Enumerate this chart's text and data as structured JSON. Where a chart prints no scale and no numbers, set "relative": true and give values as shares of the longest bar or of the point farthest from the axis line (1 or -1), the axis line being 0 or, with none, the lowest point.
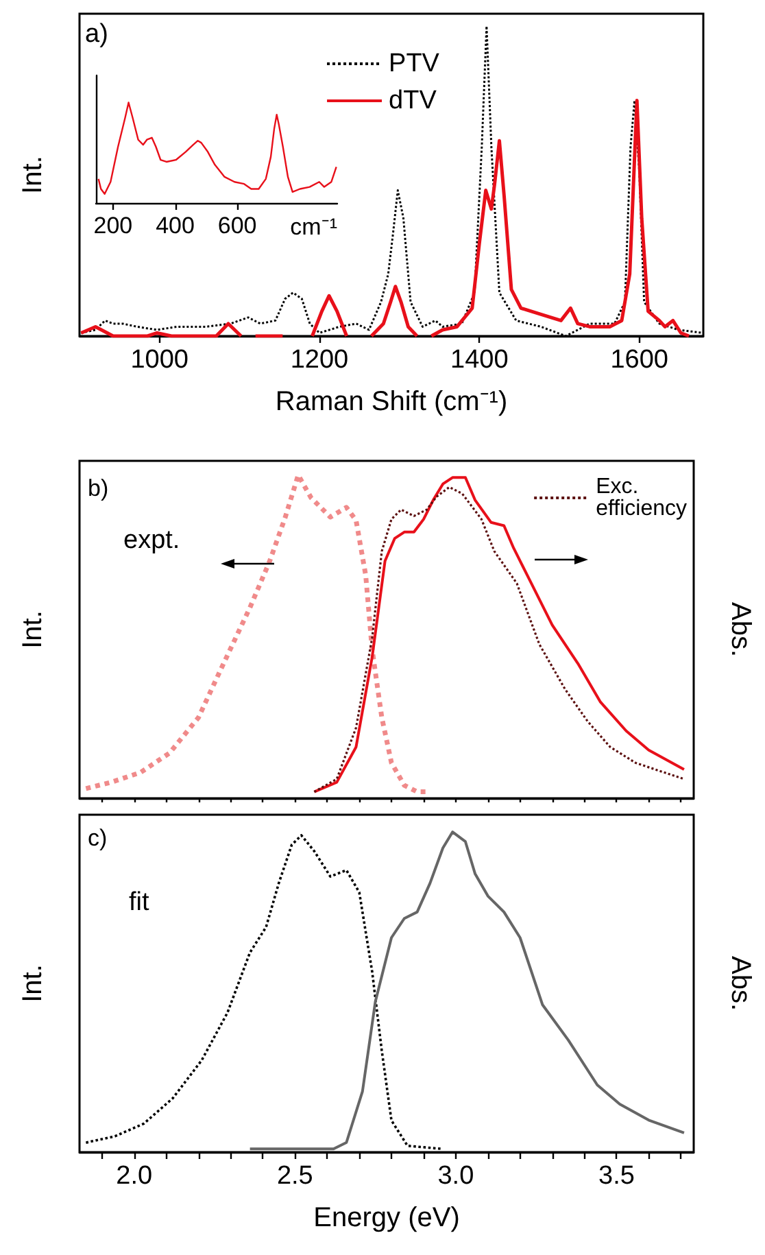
{
  "chart_data": [
    {
      "type": "line",
      "xlabel": "Raman Shift (cm⁻¹)",
      "ylabel": "Int.",
      "relative": true,
      "xlim": [
        900,
        1680
      ],
      "xticks": [
        1000,
        1200,
        1400,
        1600
      ],
      "tick_labels": "x",
      "legend": "top",
      "marker": "none",
      "annotations": [
        "a)"
      ],
      "series": [
        {
          "name": "PTV",
          "color": "#000000",
          "line_style": "dotted",
          "x": [
            902,
            920,
            932,
            942,
            954,
            972,
            997,
            1022,
            1058,
            1089,
            1111,
            1126,
            1145,
            1157,
            1167,
            1178,
            1188,
            1200,
            1225,
            1246,
            1262,
            1277,
            1286,
            1292,
            1298,
            1305,
            1314,
            1329,
            1345,
            1354,
            1378,
            1394,
            1403,
            1409,
            1415,
            1425,
            1446,
            1477,
            1508,
            1538,
            1569,
            1582,
            1589,
            1594,
            1600,
            1606,
            1625,
            1649,
            1680
          ],
          "values": [
            0.01,
            0.02,
            0.05,
            0.04,
            0.04,
            0.03,
            0.02,
            0.03,
            0.03,
            0.04,
            0.06,
            0.04,
            0.05,
            0.12,
            0.14,
            0.12,
            0.04,
            0.01,
            0.03,
            0.04,
            0.02,
            0.11,
            0.2,
            0.33,
            0.47,
            0.38,
            0.11,
            0.03,
            0.05,
            0.03,
            0.04,
            0.14,
            0.61,
            1,
            0.61,
            0.14,
            0.05,
            0.03,
            0,
            0.04,
            0.04,
            0.11,
            0.61,
            0.76,
            0.53,
            0.11,
            0.04,
            0.02,
            0.01
          ]
        },
        {
          "name": "dTV",
          "color": "#e8101a",
          "line_style": "solid",
          "x": [
            902,
            920,
            942,
            985,
            997,
            1015,
            1071,
            1086,
            1102,
            1110,
            1120,
            1154,
            1170,
            1191,
            1203,
            1212,
            1222,
            1234,
            1248,
            1265,
            1280,
            1289,
            1295,
            1302,
            1311,
            1322,
            1330,
            1340,
            1354,
            1372,
            1391,
            1400,
            1408,
            1415,
            1419,
            1425,
            1431,
            1440,
            1452,
            1477,
            1502,
            1514,
            1523,
            1538,
            1563,
            1578,
            1588,
            1597,
            1603,
            1611,
            1625,
            1632,
            1642,
            1652,
            1662
          ],
          "values": [
            0.01,
            0.03,
            0,
            0,
            0.01,
            0,
            0,
            0.04,
            0,
            null,
            0,
            0,
            null,
            0,
            0.08,
            0.13,
            0.08,
            0,
            null,
            0,
            0.04,
            0.11,
            0.16,
            0.11,
            0.03,
            0,
            null,
            0,
            0.02,
            0.03,
            0.09,
            0.3,
            0.47,
            0.41,
            0.49,
            0.63,
            0.45,
            0.15,
            0.09,
            0.07,
            0.05,
            0.09,
            0.04,
            0.03,
            0.03,
            0.05,
            0.2,
            0.76,
            0.38,
            0.08,
            0.05,
            0.03,
            0.05,
            0.01,
            0
          ]
        }
      ]
    },
    {
      "type": "line",
      "xlabel": "cm⁻¹",
      "relative": true,
      "xlim": [
        145,
        922
      ],
      "xticks": [
        200,
        400,
        600
      ],
      "tick_labels": "x",
      "marker": "none",
      "series": [
        {
          "color": "#e8101a",
          "line_style": "solid",
          "x": [
            153,
            161,
            173,
            192,
            216,
            239,
            250,
            263,
            281,
            297,
            309,
            325,
            338,
            353,
            372,
            403,
            434,
            458,
            473,
            484,
            505,
            528,
            559,
            591,
            622,
            645,
            669,
            692,
            708,
            719,
            727,
            734,
            747,
            763,
            778,
            802,
            833,
            864,
            880,
            903,
            919
          ],
          "values": [
            0.24,
            0.14,
            0.09,
            0.21,
            0.56,
            0.85,
            1,
            0.85,
            0.63,
            0.58,
            0.63,
            0.65,
            0.56,
            0.43,
            0.41,
            0.43,
            0.51,
            0.58,
            0.62,
            0.6,
            0.51,
            0.38,
            0.26,
            0.21,
            0.19,
            0.14,
            0.14,
            0.24,
            0.46,
            0.74,
            0.88,
            0.78,
            0.56,
            0.26,
            0.11,
            0.14,
            0.16,
            0.21,
            0.16,
            0.21,
            0.36
          ]
        }
      ]
    },
    {
      "type": "line",
      "ylabel": "Int.",
      "y2label": "Abs.",
      "relative": true,
      "xlim": [
        1.83,
        3.74
      ],
      "xticks": [
        {
          "value": 1.9,
          "label": null
        },
        {
          "value": 2,
          "label": null
        },
        {
          "value": 2.1,
          "label": null
        },
        {
          "value": 2.2,
          "label": null
        },
        {
          "value": 2.3,
          "label": null
        },
        {
          "value": 2.4,
          "label": null
        },
        {
          "value": 2.5,
          "label": null
        },
        {
          "value": 2.6,
          "label": null
        },
        {
          "value": 2.7,
          "label": null
        },
        {
          "value": 2.8,
          "label": null
        },
        {
          "value": 2.9,
          "label": null
        },
        {
          "value": 3,
          "label": null
        },
        {
          "value": 3.1,
          "label": null
        },
        {
          "value": 3.2,
          "label": null
        },
        {
          "value": 3.3,
          "label": null
        },
        {
          "value": 3.4,
          "label": null
        },
        {
          "value": 3.5,
          "label": null
        },
        {
          "value": 3.6,
          "label": null
        },
        {
          "value": 3.7,
          "label": null
        }
      ],
      "tick_labels": false,
      "legend": "top right",
      "marker": "none",
      "annotations": [
        "b)",
        "expt."
      ],
      "series": [
        {
          "color": "#f08a8a",
          "line_style": "dotted",
          "x": [
            1.85,
            1.93,
            2.02,
            2.11,
            2.2,
            2.27,
            2.36,
            2.42,
            2.47,
            2.51,
            2.55,
            2.61,
            2.66,
            2.69,
            2.72,
            2.74,
            2.77,
            2.8,
            2.84,
            2.88,
            2.92
          ],
          "values": [
            0.03,
            0.05,
            0.08,
            0.14,
            0.25,
            0.4,
            0.59,
            0.73,
            0.87,
            1,
            0.93,
            0.87,
            0.9,
            0.86,
            0.69,
            0.46,
            0.25,
            0.11,
            0.04,
            0.02,
            0.02
          ]
        },
        {
          "color": "#e8101a",
          "line_style": "solid",
          "axis": "y2",
          "x": [
            2.56,
            2.63,
            2.69,
            2.74,
            2.78,
            2.81,
            2.84,
            2.87,
            2.9,
            2.93,
            2.96,
            2.99,
            3.03,
            3.06,
            3.11,
            3.15,
            3.18,
            3.23,
            3.3,
            3.38,
            3.45,
            3.53,
            3.6,
            3.71
          ],
          "values": [
            0.02,
            0.05,
            0.16,
            0.44,
            0.74,
            0.81,
            0.83,
            0.83,
            0.87,
            0.93,
            0.98,
            1,
            1,
            0.93,
            0.86,
            0.85,
            0.78,
            0.68,
            0.54,
            0.42,
            0.3,
            0.21,
            0.15,
            0.09
          ]
        },
        {
          "name": "Exc. efficiency",
          "color": "#5c1010",
          "line_style": "dotted",
          "axis": "y2",
          "x": [
            2.56,
            2.63,
            2.69,
            2.74,
            2.77,
            2.8,
            2.83,
            2.87,
            2.91,
            2.94,
            2.98,
            3.02,
            3.08,
            3.12,
            3.19,
            3.26,
            3.34,
            3.41,
            3.48,
            3.56,
            3.65,
            3.71
          ],
          "values": [
            0.02,
            0.06,
            0.22,
            0.5,
            0.77,
            0.87,
            0.9,
            0.88,
            0.9,
            0.94,
            0.97,
            0.95,
            0.87,
            0.77,
            0.67,
            0.48,
            0.34,
            0.24,
            0.16,
            0.11,
            0.08,
            0.06
          ]
        }
      ]
    },
    {
      "type": "line",
      "xlabel": "Energy (eV)",
      "ylabel": "Int.",
      "y2label": "Abs.",
      "relative": true,
      "xlim": [
        1.83,
        3.74
      ],
      "xticks": [
        {
          "value": 1.9,
          "label": null
        },
        {
          "value": 2,
          "label": "2.0"
        },
        {
          "value": 2.1,
          "label": null
        },
        {
          "value": 2.2,
          "label": null
        },
        {
          "value": 2.3,
          "label": null
        },
        {
          "value": 2.4,
          "label": null
        },
        {
          "value": 2.5,
          "label": "2.5"
        },
        {
          "value": 2.6,
          "label": null
        },
        {
          "value": 2.7,
          "label": null
        },
        {
          "value": 2.8,
          "label": null
        },
        {
          "value": 2.9,
          "label": null
        },
        {
          "value": 3,
          "label": "3.0"
        },
        {
          "value": 3.1,
          "label": null
        },
        {
          "value": 3.2,
          "label": null
        },
        {
          "value": 3.3,
          "label": null
        },
        {
          "value": 3.4,
          "label": null
        },
        {
          "value": 3.5,
          "label": "3.5"
        },
        {
          "value": 3.6,
          "label": null
        },
        {
          "value": 3.7,
          "label": null
        }
      ],
      "tick_labels": "x",
      "marker": "none",
      "annotations": [
        "c)",
        "fit"
      ],
      "series": [
        {
          "color": "#000000",
          "line_style": "dotted",
          "x": [
            1.85,
            1.94,
            2.03,
            2.12,
            2.21,
            2.29,
            2.36,
            2.41,
            2.45,
            2.49,
            2.52,
            2.56,
            2.61,
            2.66,
            2.7,
            2.74,
            2.77,
            2.8,
            2.85,
            2.96
          ],
          "values": [
            0.03,
            0.05,
            0.09,
            0.17,
            0.29,
            0.44,
            0.63,
            0.71,
            0.85,
            0.97,
            1,
            0.95,
            0.87,
            0.89,
            0.82,
            0.57,
            0.32,
            0.1,
            0.02,
            0.01
          ]
        },
        {
          "color": "#666666",
          "line_style": "solid",
          "axis": "y2",
          "x": [
            2.36,
            2.62,
            2.66,
            2.71,
            2.75,
            2.8,
            2.84,
            2.88,
            2.92,
            2.96,
            2.99,
            3.03,
            3.06,
            3.1,
            3.15,
            3.2,
            3.27,
            3.35,
            3.44,
            3.51,
            3.6,
            3.71
          ],
          "values": [
            0.01,
            0.01,
            0.03,
            0.19,
            0.47,
            0.67,
            0.73,
            0.75,
            0.84,
            0.95,
            1,
            0.97,
            0.87,
            0.8,
            0.75,
            0.67,
            0.46,
            0.35,
            0.21,
            0.15,
            0.1,
            0.06
          ]
        }
      ]
    }
  ]
}
